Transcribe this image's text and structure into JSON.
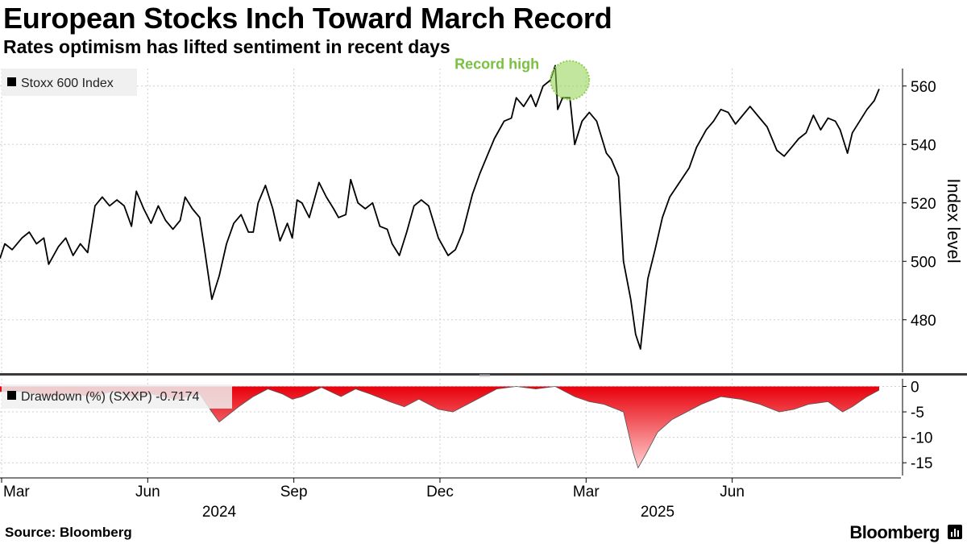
{
  "title": "European Stocks Inch Toward March Record",
  "subtitle": "Rates optimism has lifted sentiment in recent days",
  "source": "Source: Bloomberg",
  "brand": "Bloomberg",
  "brand_icon": "bloomberg-terminal-icon",
  "colors": {
    "price_line": "#000000",
    "drawdown_fill_top": "#e8000b",
    "drawdown_fill_bottom": "#ffd0d0",
    "highlight": "#8fd14f",
    "annotation_text": "#7ac142",
    "grid": "#cfcfcf"
  },
  "chart_data": [
    {
      "type": "line",
      "panel": "price",
      "legend": "Stoxx 600 Index",
      "ylabel": "Index level",
      "yticks": [
        480,
        500,
        520,
        540,
        560
      ],
      "ylim": [
        462,
        566
      ],
      "xlim": [
        0,
        18.1
      ],
      "x_unit": "months since 1 Mar 2024",
      "annotation": {
        "text": "Record high",
        "x": 11.7,
        "y": 562
      },
      "series": [
        {
          "name": "Stoxx 600 Index",
          "points": [
            [
              0.0,
              501
            ],
            [
              0.1,
              506
            ],
            [
              0.25,
              504
            ],
            [
              0.45,
              508
            ],
            [
              0.6,
              510
            ],
            [
              0.75,
              506
            ],
            [
              0.9,
              508
            ],
            [
              1.0,
              499
            ],
            [
              1.2,
              505
            ],
            [
              1.35,
              508
            ],
            [
              1.5,
              502
            ],
            [
              1.65,
              506
            ],
            [
              1.8,
              503
            ],
            [
              1.95,
              519
            ],
            [
              2.1,
              522
            ],
            [
              2.25,
              519
            ],
            [
              2.4,
              521
            ],
            [
              2.55,
              519
            ],
            [
              2.7,
              512
            ],
            [
              2.8,
              524
            ],
            [
              2.95,
              518
            ],
            [
              3.1,
              513
            ],
            [
              3.25,
              519
            ],
            [
              3.4,
              514
            ],
            [
              3.55,
              511
            ],
            [
              3.7,
              514
            ],
            [
              3.8,
              522
            ],
            [
              3.95,
              518
            ],
            [
              4.1,
              515
            ],
            [
              4.2,
              504
            ],
            [
              4.35,
              487
            ],
            [
              4.5,
              495
            ],
            [
              4.65,
              506
            ],
            [
              4.8,
              513
            ],
            [
              4.95,
              516
            ],
            [
              5.1,
              510
            ],
            [
              5.2,
              510
            ],
            [
              5.3,
              520
            ],
            [
              5.45,
              526
            ],
            [
              5.6,
              518
            ],
            [
              5.75,
              507
            ],
            [
              5.9,
              513
            ],
            [
              6.0,
              508
            ],
            [
              6.1,
              521
            ],
            [
              6.2,
              520
            ],
            [
              6.35,
              515
            ],
            [
              6.55,
              527
            ],
            [
              6.7,
              522
            ],
            [
              6.85,
              518
            ],
            [
              6.95,
              515
            ],
            [
              7.1,
              516
            ],
            [
              7.2,
              528
            ],
            [
              7.35,
              520
            ],
            [
              7.5,
              518
            ],
            [
              7.65,
              520
            ],
            [
              7.8,
              512
            ],
            [
              7.95,
              511
            ],
            [
              8.05,
              506
            ],
            [
              8.2,
              502
            ],
            [
              8.35,
              510
            ],
            [
              8.5,
              519
            ],
            [
              8.65,
              521
            ],
            [
              8.8,
              519
            ],
            [
              9.0,
              508
            ],
            [
              9.2,
              502
            ],
            [
              9.35,
              504
            ],
            [
              9.5,
              510
            ],
            [
              9.7,
              523
            ],
            [
              9.85,
              530
            ],
            [
              10.0,
              536
            ],
            [
              10.15,
              542
            ],
            [
              10.35,
              548
            ],
            [
              10.5,
              549
            ],
            [
              10.6,
              556
            ],
            [
              10.75,
              553
            ],
            [
              10.9,
              557
            ],
            [
              11.0,
              553
            ],
            [
              11.15,
              560
            ],
            [
              11.3,
              562
            ],
            [
              11.4,
              567
            ],
            [
              11.45,
              552
            ],
            [
              11.55,
              556
            ],
            [
              11.7,
              556
            ],
            [
              11.8,
              540
            ],
            [
              11.95,
              548
            ],
            [
              12.1,
              551
            ],
            [
              12.25,
              548
            ],
            [
              12.45,
              537
            ],
            [
              12.55,
              535
            ],
            [
              12.7,
              529
            ],
            [
              12.8,
              500
            ],
            [
              12.95,
              487
            ],
            [
              13.05,
              475
            ],
            [
              13.15,
              470
            ],
            [
              13.3,
              494
            ],
            [
              13.45,
              504
            ],
            [
              13.6,
              515
            ],
            [
              13.75,
              522
            ],
            [
              13.95,
              527
            ],
            [
              14.15,
              532
            ],
            [
              14.3,
              539
            ],
            [
              14.5,
              545
            ],
            [
              14.65,
              548
            ],
            [
              14.8,
              552
            ],
            [
              14.95,
              551
            ],
            [
              15.1,
              547
            ],
            [
              15.25,
              550
            ],
            [
              15.4,
              553
            ],
            [
              15.55,
              550
            ],
            [
              15.75,
              546
            ],
            [
              15.95,
              538
            ],
            [
              16.1,
              536
            ],
            [
              16.25,
              539
            ],
            [
              16.4,
              542
            ],
            [
              16.55,
              544
            ],
            [
              16.7,
              550
            ],
            [
              16.85,
              545
            ],
            [
              17.0,
              549
            ],
            [
              17.15,
              548
            ],
            [
              17.25,
              545
            ],
            [
              17.4,
              537
            ],
            [
              17.5,
              544
            ],
            [
              17.65,
              548
            ],
            [
              17.8,
              552
            ],
            [
              17.95,
              555
            ],
            [
              18.05,
              559
            ]
          ]
        }
      ]
    },
    {
      "type": "area",
      "panel": "drawdown",
      "legend": "Drawdown (%) (SXXP) -0.7174",
      "yticks": [
        0,
        -5,
        -10,
        -15
      ],
      "ylim": [
        -17.5,
        1.5
      ],
      "xlim": [
        0,
        18.1
      ],
      "series": [
        {
          "name": "Drawdown (%) (SXXP)",
          "points": [
            [
              0.0,
              -1
            ],
            [
              0.5,
              -1
            ],
            [
              1.0,
              -2
            ],
            [
              1.5,
              -1.5
            ],
            [
              1.9,
              -2
            ],
            [
              2.3,
              -1
            ],
            [
              2.7,
              -2
            ],
            [
              3.1,
              -1.5
            ],
            [
              3.6,
              -2.5
            ],
            [
              4.1,
              -1.5
            ],
            [
              4.35,
              -5
            ],
            [
              4.5,
              -7
            ],
            [
              4.7,
              -5.5
            ],
            [
              4.9,
              -4
            ],
            [
              5.2,
              -2
            ],
            [
              5.5,
              -0.5
            ],
            [
              5.8,
              -1.5
            ],
            [
              6.0,
              -2.5
            ],
            [
              6.2,
              -2
            ],
            [
              6.6,
              -0.2
            ],
            [
              7.0,
              -2
            ],
            [
              7.3,
              -0.5
            ],
            [
              7.6,
              -1.5
            ],
            [
              8.0,
              -3
            ],
            [
              8.3,
              -4
            ],
            [
              8.6,
              -2.5
            ],
            [
              9.0,
              -4.5
            ],
            [
              9.3,
              -5
            ],
            [
              9.6,
              -3.5
            ],
            [
              9.9,
              -2
            ],
            [
              10.2,
              -0.5
            ],
            [
              10.6,
              0
            ],
            [
              11.0,
              -0.5
            ],
            [
              11.4,
              0
            ],
            [
              11.8,
              -2
            ],
            [
              12.1,
              -3
            ],
            [
              12.4,
              -3.5
            ],
            [
              12.8,
              -5
            ],
            [
              13.0,
              -13
            ],
            [
              13.1,
              -16
            ],
            [
              13.25,
              -13.5
            ],
            [
              13.5,
              -9
            ],
            [
              13.8,
              -6.5
            ],
            [
              14.1,
              -5
            ],
            [
              14.4,
              -3.5
            ],
            [
              14.8,
              -2
            ],
            [
              15.2,
              -2.5
            ],
            [
              15.6,
              -3.5
            ],
            [
              16.0,
              -5
            ],
            [
              16.3,
              -4.5
            ],
            [
              16.6,
              -3.5
            ],
            [
              17.0,
              -3
            ],
            [
              17.3,
              -5
            ],
            [
              17.5,
              -4
            ],
            [
              17.8,
              -2
            ],
            [
              18.05,
              -0.7174
            ]
          ]
        }
      ]
    }
  ],
  "x_axis": {
    "month_ticks": [
      {
        "label": "Mar",
        "x": 0
      },
      {
        "label": "Jun",
        "x": 3
      },
      {
        "label": "Sep",
        "x": 6
      },
      {
        "label": "Dec",
        "x": 9
      },
      {
        "label": "Mar",
        "x": 12
      },
      {
        "label": "Jun",
        "x": 15
      }
    ],
    "year_labels": [
      {
        "label": "2024",
        "x": 4.5
      },
      {
        "label": "2025",
        "x": 13.5
      }
    ]
  }
}
